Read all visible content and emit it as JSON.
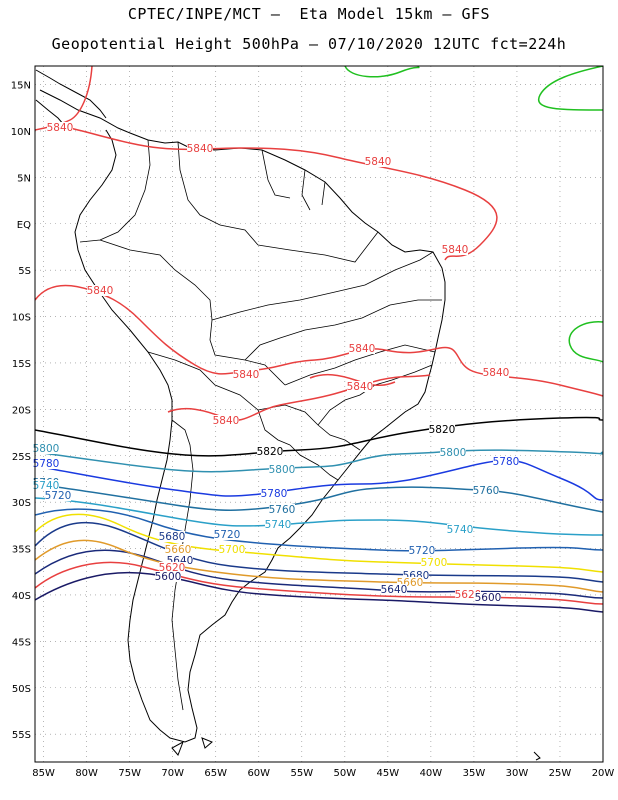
{
  "header": {
    "line1": "CPTEC/INPE/MCT –  Eta Model 15km – GFS",
    "line2": "Geopotential Height 500hPa – 07/10/2020 12UTC fct=224h"
  },
  "axes": {
    "lat_labels": [
      "15N",
      "10N",
      "5N",
      "EQ",
      "5S",
      "10S",
      "15S",
      "20S",
      "25S",
      "30S",
      "35S",
      "40S",
      "45S",
      "50S",
      "55S"
    ],
    "lon_labels": [
      "85W",
      "80W",
      "75W",
      "70W",
      "65W",
      "60W",
      "55W",
      "50W",
      "45W",
      "40W",
      "35W",
      "30W",
      "25W",
      "20W"
    ],
    "lat_range": [
      17,
      -58
    ],
    "lon_range": [
      -86,
      -20
    ],
    "grid": true
  },
  "contours": [
    {
      "level": 5600,
      "label": "5600",
      "color": "#1a1a66"
    },
    {
      "level": 5620,
      "label": "5620",
      "color": "#e84040"
    },
    {
      "level": 5640,
      "label": "5640",
      "color": "#1a2a7a"
    },
    {
      "level": 5660,
      "label": "5660",
      "color": "#e09a2a"
    },
    {
      "level": 5680,
      "label": "5680",
      "color": "#1a3a8a"
    },
    {
      "level": 5700,
      "label": "5700",
      "color": "#f0e000"
    },
    {
      "level": 5720,
      "label": "5720",
      "color": "#2060b0"
    },
    {
      "level": 5740,
      "label": "5740",
      "color": "#2aa0c8"
    },
    {
      "level": 5760,
      "label": "5760",
      "color": "#2070a0"
    },
    {
      "level": 5780,
      "label": "5780",
      "color": "#1a3ae0"
    },
    {
      "level": 5800,
      "label": "5800",
      "color": "#3090b0"
    },
    {
      "level": 5820,
      "label": "5820",
      "color": "#000000"
    },
    {
      "level": 5840,
      "label": "5840",
      "color": "#e84040"
    },
    {
      "level": 5860,
      "label": "",
      "color": "#20c020"
    }
  ],
  "map_colors": {
    "coast": "#000000",
    "grid": "#888888",
    "frame": "#000000"
  }
}
